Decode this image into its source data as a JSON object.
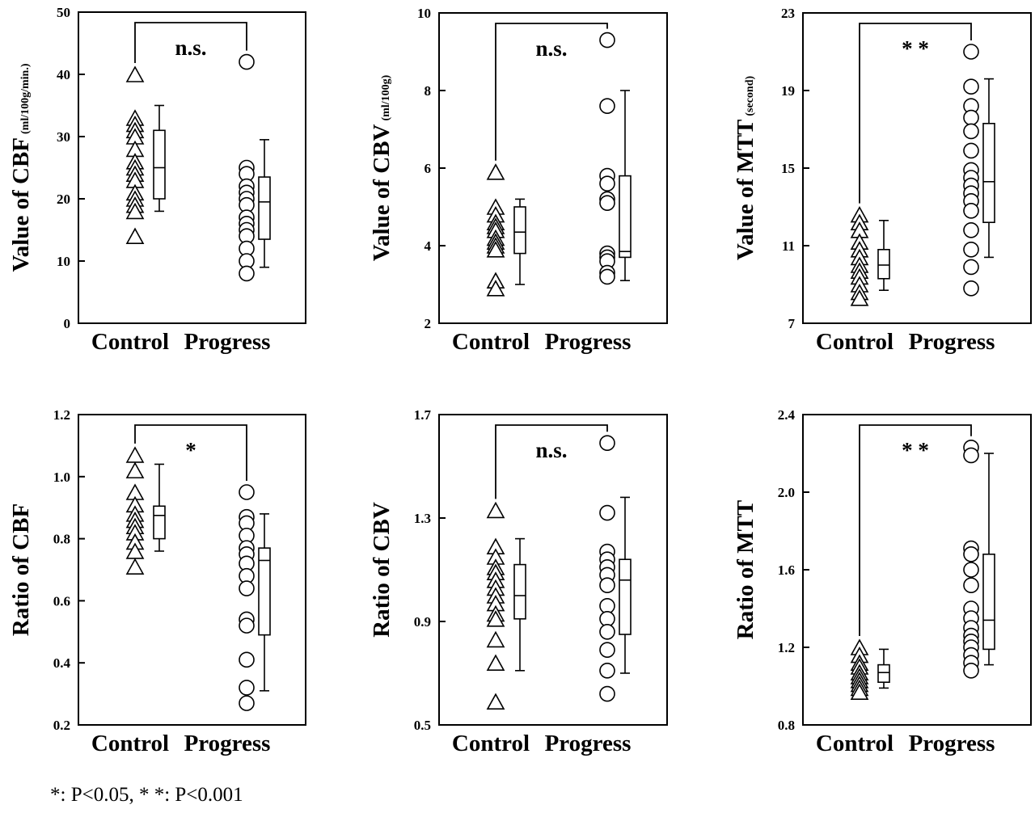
{
  "footnote": "*: P<0.05, * *: P<0.001",
  "chart_data": [
    {
      "type": "scatter",
      "ylabel": "Value of CBF",
      "yunit": "(ml/100g/min.)",
      "ylim": [
        0,
        50
      ],
      "yticks": [
        0,
        10,
        20,
        30,
        40,
        50
      ],
      "tick_labels": [
        "0",
        "10",
        "20",
        "30",
        "40",
        "50"
      ],
      "categories": [
        "Control",
        "Progress"
      ],
      "significance": "n.s.",
      "groups": [
        {
          "name": "Control",
          "marker": "triangle",
          "values": [
            40,
            33,
            32,
            31,
            30,
            28,
            26,
            25,
            24,
            23,
            21,
            20,
            19,
            18,
            14
          ],
          "box": {
            "min": 18,
            "q1": 20,
            "median": 25,
            "q3": 31,
            "max": 35
          }
        },
        {
          "name": "Progress",
          "marker": "circle",
          "values": [
            42,
            25,
            24,
            22,
            21,
            20,
            19,
            17,
            16,
            15,
            14,
            12,
            10,
            8
          ],
          "box": {
            "min": 9,
            "q1": 13.5,
            "median": 19.5,
            "q3": 23.5,
            "max": 29.5
          }
        }
      ]
    },
    {
      "type": "scatter",
      "ylabel": "Value of CBV",
      "yunit": "(ml/100g)",
      "ylim": [
        2,
        10
      ],
      "yticks": [
        2,
        4,
        6,
        8,
        10
      ],
      "tick_labels": [
        "2",
        "4",
        "6",
        "8",
        "10"
      ],
      "categories": [
        "Control",
        "Progress"
      ],
      "significance": "n.s.",
      "groups": [
        {
          "name": "Control",
          "marker": "triangle",
          "values": [
            5.9,
            5.0,
            4.8,
            4.6,
            4.5,
            4.4,
            4.2,
            4.1,
            4.0,
            3.9,
            3.1,
            2.9
          ],
          "box": {
            "min": 3.0,
            "q1": 3.8,
            "median": 4.35,
            "q3": 5.0,
            "max": 5.2
          }
        },
        {
          "name": "Progress",
          "marker": "circle",
          "values": [
            9.3,
            7.6,
            5.8,
            5.6,
            5.2,
            5.1,
            3.8,
            3.7,
            3.6,
            3.3,
            3.2
          ],
          "box": {
            "min": 3.1,
            "q1": 3.7,
            "median": 3.85,
            "q3": 5.8,
            "max": 8.0
          }
        }
      ]
    },
    {
      "type": "scatter",
      "ylabel": "Value of MTT",
      "yunit": "(second)",
      "ylim": [
        7,
        23
      ],
      "yticks": [
        7,
        11,
        15,
        19,
        23
      ],
      "tick_labels": [
        "7",
        "11",
        "15",
        "19",
        "23"
      ],
      "categories": [
        "Control",
        "Progress"
      ],
      "significance": "* *",
      "groups": [
        {
          "name": "Control",
          "marker": "triangle",
          "values": [
            12.6,
            12.2,
            11.8,
            11.2,
            10.8,
            10.4,
            10.0,
            9.7,
            9.4,
            9.0,
            8.6,
            8.3
          ],
          "box": {
            "min": 8.7,
            "q1": 9.3,
            "median": 10.0,
            "q3": 10.8,
            "max": 12.3
          }
        },
        {
          "name": "Progress",
          "marker": "circle",
          "values": [
            21.0,
            19.2,
            18.2,
            17.6,
            16.9,
            15.9,
            14.9,
            14.5,
            14.1,
            13.7,
            13.3,
            12.8,
            11.8,
            10.8,
            9.9,
            8.8
          ],
          "box": {
            "min": 10.4,
            "q1": 12.2,
            "median": 14.3,
            "q3": 17.3,
            "max": 19.6
          }
        }
      ]
    },
    {
      "type": "scatter",
      "ylabel": "Ratio of CBF",
      "yunit": "",
      "ylim": [
        0.2,
        1.2
      ],
      "yticks": [
        0.2,
        0.4,
        0.6,
        0.8,
        1.0,
        1.2
      ],
      "tick_labels": [
        "0.2",
        "0.4",
        "0.6",
        "0.8",
        "1.0",
        "1.2"
      ],
      "categories": [
        "Control",
        "Progress"
      ],
      "significance": "*",
      "groups": [
        {
          "name": "Control",
          "marker": "triangle",
          "values": [
            1.07,
            1.02,
            0.95,
            0.91,
            0.88,
            0.86,
            0.84,
            0.82,
            0.79,
            0.76,
            0.71
          ],
          "box": {
            "min": 0.76,
            "q1": 0.8,
            "median": 0.875,
            "q3": 0.905,
            "max": 1.04
          }
        },
        {
          "name": "Progress",
          "marker": "circle",
          "values": [
            0.95,
            0.87,
            0.85,
            0.81,
            0.77,
            0.75,
            0.72,
            0.68,
            0.64,
            0.54,
            0.52,
            0.41,
            0.32,
            0.27
          ],
          "box": {
            "min": 0.31,
            "q1": 0.49,
            "median": 0.73,
            "q3": 0.77,
            "max": 0.88
          }
        }
      ]
    },
    {
      "type": "scatter",
      "ylabel": "Ratio of CBV",
      "yunit": "",
      "ylim": [
        0.5,
        1.7
      ],
      "yticks": [
        0.5,
        0.9,
        1.3,
        1.7
      ],
      "tick_labels": [
        "0.5",
        "0.9",
        "1.3",
        "1.7"
      ],
      "categories": [
        "Control",
        "Progress"
      ],
      "significance": "n.s.",
      "groups": [
        {
          "name": "Control",
          "marker": "triangle",
          "values": [
            1.33,
            1.19,
            1.15,
            1.11,
            1.09,
            1.06,
            1.03,
            1.0,
            0.97,
            0.93,
            0.91,
            0.83,
            0.74,
            0.59
          ],
          "box": {
            "min": 0.71,
            "q1": 0.91,
            "median": 1.0,
            "q3": 1.12,
            "max": 1.22
          }
        },
        {
          "name": "Progress",
          "marker": "circle",
          "values": [
            1.59,
            1.32,
            1.17,
            1.14,
            1.11,
            1.08,
            1.04,
            0.96,
            0.91,
            0.86,
            0.79,
            0.71,
            0.62
          ],
          "box": {
            "min": 0.7,
            "q1": 0.85,
            "median": 1.06,
            "q3": 1.14,
            "max": 1.38
          }
        }
      ]
    },
    {
      "type": "scatter",
      "ylabel": "Ratio of MTT",
      "yunit": "",
      "ylim": [
        0.8,
        2.4
      ],
      "yticks": [
        0.8,
        1.2,
        1.6,
        2.0,
        2.4
      ],
      "tick_labels": [
        "0.8",
        "1.2",
        "1.6",
        "2.0",
        "2.4"
      ],
      "categories": [
        "Control",
        "Progress"
      ],
      "significance": "* *",
      "groups": [
        {
          "name": "Control",
          "marker": "triangle",
          "values": [
            1.2,
            1.16,
            1.12,
            1.1,
            1.07,
            1.05,
            1.03,
            1.01,
            0.99,
            0.97
          ],
          "box": {
            "min": 0.99,
            "q1": 1.02,
            "median": 1.07,
            "q3": 1.11,
            "max": 1.19
          }
        },
        {
          "name": "Progress",
          "marker": "circle",
          "values": [
            2.23,
            2.19,
            1.71,
            1.68,
            1.6,
            1.52,
            1.4,
            1.35,
            1.3,
            1.26,
            1.23,
            1.2,
            1.16,
            1.12,
            1.08
          ],
          "box": {
            "min": 1.11,
            "q1": 1.19,
            "median": 1.34,
            "q3": 1.68,
            "max": 2.2
          }
        }
      ]
    }
  ]
}
